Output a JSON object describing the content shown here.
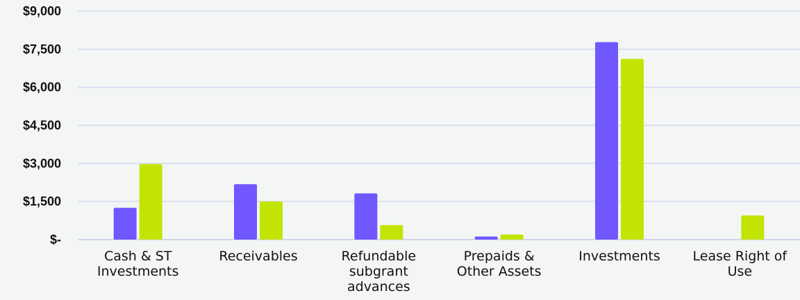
{
  "chart_data": {
    "type": "bar",
    "categories": [
      [
        "Cash & ST",
        "Investments"
      ],
      [
        "Receivables"
      ],
      [
        "Refundable",
        "subgrant",
        "advances"
      ],
      [
        "Prepaids &",
        "Other Assets"
      ],
      [
        "Investments"
      ],
      [
        "Lease Right of",
        "Use"
      ]
    ],
    "series": [
      {
        "values": [
          1250,
          2180,
          1820,
          120,
          7780,
          0
        ],
        "color": "#7057ff"
      },
      {
        "values": [
          2970,
          1500,
          570,
          200,
          7120,
          950
        ],
        "color": "#c3e402"
      }
    ],
    "ylim": [
      0,
      9000
    ],
    "yticks": [
      0,
      1500,
      3000,
      4500,
      6000,
      7500,
      9000
    ],
    "ytick_labels": [
      "$-",
      "$1,500",
      "$3,000",
      "$4,500",
      "$6,000",
      "$7,500",
      "$9,000"
    ],
    "grid": true,
    "gridline_color": "#d4d8ec",
    "background_color": "#f3f6f5",
    "title": "",
    "xlabel": "",
    "ylabel": ""
  }
}
